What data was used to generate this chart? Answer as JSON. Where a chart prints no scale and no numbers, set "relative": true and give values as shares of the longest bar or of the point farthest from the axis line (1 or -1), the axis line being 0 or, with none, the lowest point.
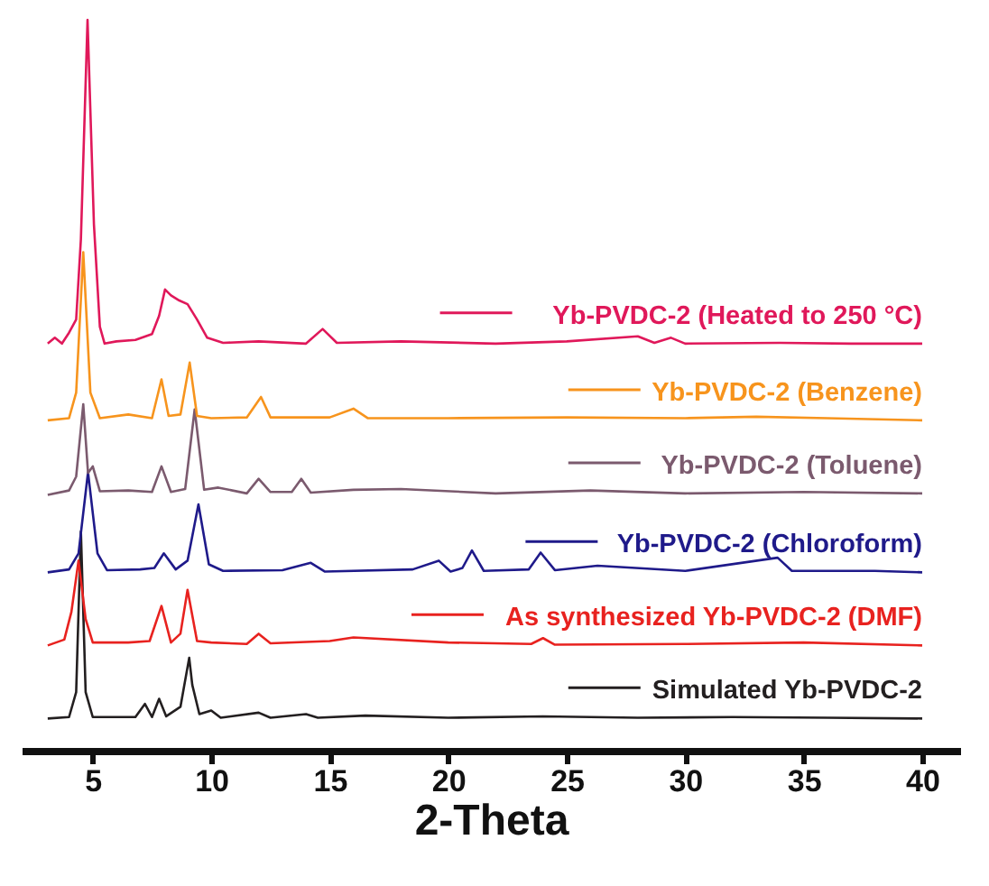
{
  "chart_data": {
    "type": "line",
    "relative": true,
    "xlabel": "2-Theta",
    "xlim": [
      2,
      41.6
    ],
    "xticks": [
      5,
      10,
      15,
      20,
      25,
      30,
      35,
      40
    ],
    "grid": false,
    "legend": "right",
    "marker": "none",
    "line_style": "solid",
    "series": [
      {
        "name": "Yb-PVDC-2 (Heated to 250 °C)",
        "color": "#e0185a",
        "x": [
          3.1,
          3.4,
          3.7,
          4.0,
          4.3,
          4.5,
          4.78,
          5.05,
          5.3,
          5.5,
          6.0,
          6.8,
          7.5,
          7.8,
          8.05,
          8.3,
          8.65,
          9.0,
          9.4,
          9.83,
          10.5,
          12.0,
          14.0,
          14.7,
          15.3,
          18.0,
          22.0,
          25.0,
          28.0,
          28.7,
          29.4,
          30.0,
          34.0,
          37.0,
          40.0
        ],
        "values": [
          0.557,
          0.565,
          0.557,
          0.572,
          0.59,
          0.7,
          1.0,
          0.72,
          0.58,
          0.557,
          0.56,
          0.562,
          0.57,
          0.595,
          0.631,
          0.623,
          0.616,
          0.611,
          0.59,
          0.565,
          0.558,
          0.56,
          0.557,
          0.577,
          0.558,
          0.56,
          0.557,
          0.56,
          0.567,
          0.558,
          0.565,
          0.557,
          0.558,
          0.557,
          0.557
        ]
      },
      {
        "name": "Yb-PVDC-2 (Benzene)",
        "color": "#f7941d",
        "x": [
          3.1,
          4.0,
          4.3,
          4.6,
          4.9,
          5.3,
          6.5,
          7.5,
          7.9,
          8.2,
          8.7,
          9.09,
          9.4,
          10.0,
          11.5,
          12.1,
          12.5,
          15.0,
          16.0,
          16.6,
          20.0,
          25.0,
          30.0,
          33.0,
          36.0,
          40.0
        ],
        "values": [
          0.452,
          0.455,
          0.49,
          0.682,
          0.49,
          0.455,
          0.46,
          0.455,
          0.508,
          0.458,
          0.46,
          0.531,
          0.458,
          0.455,
          0.456,
          0.484,
          0.456,
          0.456,
          0.468,
          0.455,
          0.455,
          0.456,
          0.455,
          0.457,
          0.455,
          0.452
        ]
      },
      {
        "name": "Yb-PVDC-2 (Toluene)",
        "color": "#7b5a6e",
        "x": [
          3.1,
          4.0,
          4.3,
          4.6,
          4.8,
          5.0,
          5.3,
          6.5,
          7.5,
          7.9,
          8.3,
          8.9,
          9.3,
          9.7,
          10.3,
          11.5,
          12.0,
          12.5,
          13.4,
          13.8,
          14.2,
          16.0,
          18.0,
          22.0,
          26.0,
          30.0,
          35.0,
          40.0
        ],
        "values": [
          0.35,
          0.356,
          0.375,
          0.474,
          0.38,
          0.389,
          0.355,
          0.356,
          0.354,
          0.389,
          0.354,
          0.358,
          0.467,
          0.357,
          0.36,
          0.352,
          0.372,
          0.354,
          0.354,
          0.372,
          0.353,
          0.357,
          0.358,
          0.352,
          0.356,
          0.352,
          0.354,
          0.352
        ]
      },
      {
        "name": "Yb-PVDC-2 (Chloroform)",
        "color": "#1f1a8a",
        "x": [
          3.1,
          4.0,
          4.4,
          4.8,
          5.2,
          5.6,
          7.0,
          7.6,
          8.0,
          8.5,
          9.0,
          9.46,
          9.9,
          10.5,
          13.0,
          14.2,
          14.8,
          18.5,
          19.6,
          20.1,
          20.6,
          21.0,
          21.5,
          23.4,
          23.9,
          24.5,
          26.3,
          30.0,
          33.9,
          34.5,
          38.0,
          40.0
        ],
        "values": [
          0.244,
          0.248,
          0.27,
          0.381,
          0.27,
          0.247,
          0.248,
          0.25,
          0.27,
          0.248,
          0.26,
          0.337,
          0.255,
          0.246,
          0.247,
          0.257,
          0.245,
          0.248,
          0.26,
          0.245,
          0.25,
          0.274,
          0.246,
          0.248,
          0.271,
          0.247,
          0.253,
          0.246,
          0.264,
          0.246,
          0.246,
          0.244
        ]
      },
      {
        "name": "As synthesized Yb-PVDC-2 (DMF)",
        "color": "#e8221f",
        "x": [
          3.1,
          3.8,
          4.1,
          4.4,
          4.7,
          5.0,
          6.5,
          7.4,
          7.9,
          8.3,
          8.7,
          9.0,
          9.4,
          10.0,
          11.5,
          12.0,
          12.5,
          15.0,
          16.0,
          20.0,
          23.5,
          24.0,
          24.5,
          30.0,
          35.0,
          40.0
        ],
        "values": [
          0.144,
          0.152,
          0.19,
          0.26,
          0.18,
          0.148,
          0.148,
          0.15,
          0.198,
          0.148,
          0.16,
          0.22,
          0.15,
          0.148,
          0.146,
          0.16,
          0.147,
          0.15,
          0.155,
          0.148,
          0.146,
          0.154,
          0.145,
          0.146,
          0.148,
          0.144
        ]
      },
      {
        "name": "Simulated Yb-PVDC-2",
        "color": "#231f20",
        "x": [
          3.1,
          4.0,
          4.3,
          4.5,
          4.7,
          5.0,
          6.8,
          7.2,
          7.5,
          7.8,
          8.1,
          8.7,
          9.07,
          9.2,
          9.5,
          10.0,
          10.4,
          12.0,
          12.5,
          14.0,
          14.5,
          16.5,
          20.0,
          24.0,
          28.0,
          32.0,
          36.0,
          40.0
        ],
        "values": [
          0.044,
          0.046,
          0.08,
          0.3,
          0.08,
          0.046,
          0.046,
          0.064,
          0.046,
          0.071,
          0.047,
          0.06,
          0.127,
          0.09,
          0.05,
          0.055,
          0.045,
          0.052,
          0.045,
          0.05,
          0.045,
          0.048,
          0.045,
          0.047,
          0.045,
          0.046,
          0.045,
          0.044
        ]
      }
    ]
  }
}
